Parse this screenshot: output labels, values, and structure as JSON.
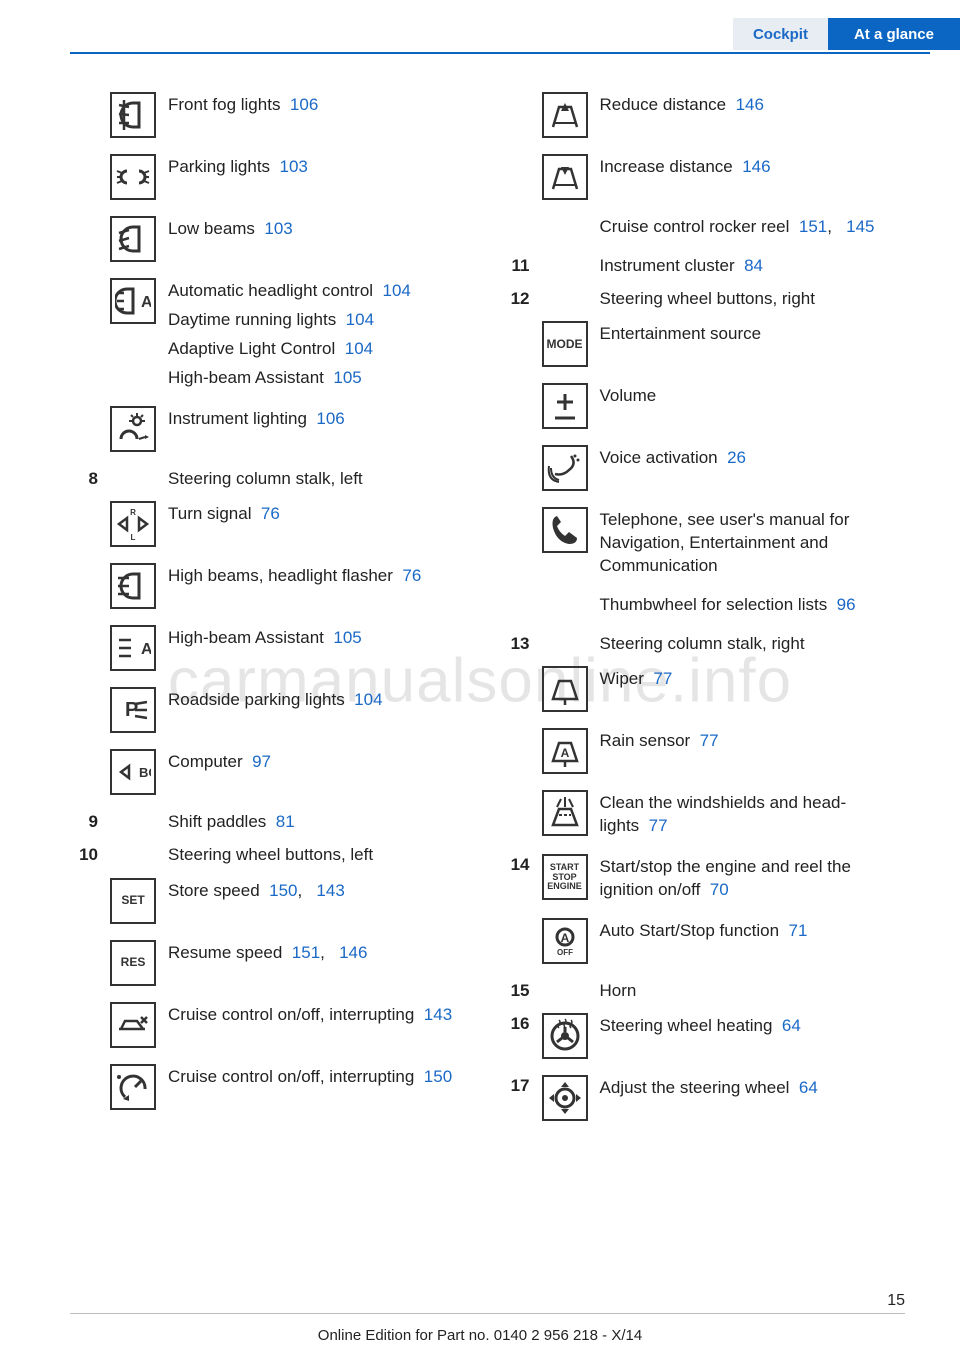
{
  "colors": {
    "link": "#1b69c6",
    "text": "#222222",
    "header_light_bg": "#e8edf4",
    "header_dark_bg": "#0a66c2",
    "header_rule": "#0a66c2",
    "watermark": "rgba(0,0,0,0.10)"
  },
  "typography": {
    "body_fontsize_pt": 13,
    "number_bold": true,
    "font_family": "Arial"
  },
  "header": {
    "tab_left": "Cockpit",
    "tab_right": "At a glance"
  },
  "watermark_text": "carmanualsonline.info",
  "page_number": "15",
  "footer_line": "Online Edition for Part no. 0140 2 956 218 - X/14",
  "left_column": [
    {
      "type": "icon-row",
      "num": "",
      "icon": "front-fog-icon",
      "icon_label": "",
      "text": [
        {
          "label": "Front fog lights",
          "refs": [
            "106"
          ]
        }
      ]
    },
    {
      "type": "icon-row",
      "num": "",
      "icon": "parking-lights-icon",
      "icon_label": "",
      "text": [
        {
          "label": "Parking lights",
          "refs": [
            "103"
          ]
        }
      ]
    },
    {
      "type": "icon-row",
      "num": "",
      "icon": "low-beams-icon",
      "icon_label": "",
      "text": [
        {
          "label": "Low beams",
          "refs": [
            "103"
          ]
        }
      ]
    },
    {
      "type": "icon-row",
      "num": "",
      "icon": "auto-headlight-icon",
      "icon_label": "",
      "text": [
        {
          "label": "Automatic headlight con­trol",
          "refs": [
            "104"
          ]
        },
        {
          "label": "Daytime running lights",
          "refs": [
            "104"
          ]
        },
        {
          "label": "Adaptive Light Control",
          "refs": [
            "104"
          ]
        },
        {
          "label": "High-beam Assistant",
          "refs": [
            "105"
          ]
        }
      ]
    },
    {
      "type": "icon-row",
      "num": "",
      "icon": "instrument-lighting-icon",
      "icon_label": "",
      "text": [
        {
          "label": "Instrument lighting",
          "refs": [
            "106"
          ]
        }
      ]
    },
    {
      "type": "heading",
      "num": "8",
      "text": "Steering column stalk, left"
    },
    {
      "type": "icon-row",
      "num": "",
      "icon": "turn-signal-icon",
      "icon_label": "",
      "text": [
        {
          "label": "Turn signal",
          "refs": [
            "76"
          ]
        }
      ]
    },
    {
      "type": "icon-row",
      "num": "",
      "icon": "high-beams-icon",
      "icon_label": "",
      "text": [
        {
          "label": "High beams, head­light flasher",
          "refs": [
            "76"
          ]
        }
      ]
    },
    {
      "type": "icon-row",
      "num": "",
      "icon": "high-beam-assist-icon",
      "icon_label": "",
      "text": [
        {
          "label": "High-beam Assistant",
          "refs": [
            "105"
          ]
        }
      ]
    },
    {
      "type": "icon-row",
      "num": "",
      "icon": "roadside-parking-icon",
      "icon_label": "",
      "text": [
        {
          "label": "Roadside parking lights",
          "refs": [
            "104"
          ]
        }
      ]
    },
    {
      "type": "icon-row",
      "num": "",
      "icon": "computer-icon",
      "icon_label": "BC",
      "text": [
        {
          "label": "Computer",
          "refs": [
            "97"
          ]
        }
      ]
    },
    {
      "type": "heading",
      "num": "9",
      "text_label": "Shift paddles",
      "refs": [
        "81"
      ]
    },
    {
      "type": "heading",
      "num": "10",
      "text": "Steering wheel buttons, left"
    },
    {
      "type": "icon-row",
      "num": "",
      "icon": "set-icon",
      "icon_label": "SET",
      "text": [
        {
          "label": "Store speed",
          "refs": [
            "150",
            "143"
          ]
        }
      ]
    },
    {
      "type": "icon-row",
      "num": "",
      "icon": "res-icon",
      "icon_label": "RES",
      "text": [
        {
          "label": "Resume speed",
          "refs": [
            "151",
            "146"
          ]
        }
      ]
    },
    {
      "type": "icon-row",
      "num": "",
      "icon": "cruise-car-icon",
      "icon_label": "",
      "text": [
        {
          "label": "Cruise control on/off, interrupt­ing",
          "refs": [
            "143"
          ]
        }
      ]
    },
    {
      "type": "icon-row",
      "num": "",
      "icon": "cruise-dial-icon",
      "icon_label": "",
      "text": [
        {
          "label": "Cruise control on/off, interrupt­ing",
          "refs": [
            "150"
          ]
        }
      ]
    }
  ],
  "right_column": [
    {
      "type": "icon-row",
      "num": "",
      "icon": "reduce-distance-icon",
      "icon_label": "",
      "text": [
        {
          "label": "Reduce distance",
          "refs": [
            "146"
          ]
        }
      ]
    },
    {
      "type": "icon-row",
      "num": "",
      "icon": "increase-distance-icon",
      "icon_label": "",
      "text": [
        {
          "label": "Increase distance",
          "refs": [
            "146"
          ]
        }
      ]
    },
    {
      "type": "text-row",
      "num": "",
      "text_label": "Cruise control rocker reel",
      "refs": [
        "151",
        "145"
      ]
    },
    {
      "type": "heading",
      "num": "11",
      "text_label": "Instrument cluster",
      "refs": [
        "84"
      ]
    },
    {
      "type": "heading",
      "num": "12",
      "text": "Steering wheel buttons, right"
    },
    {
      "type": "icon-row",
      "num": "",
      "icon": "mode-icon",
      "icon_label": "MODE",
      "text": [
        {
          "label": "Entertainment source",
          "refs": []
        }
      ]
    },
    {
      "type": "icon-row",
      "num": "",
      "icon": "volume-icon",
      "icon_label": "",
      "text": [
        {
          "label": "Volume",
          "refs": []
        }
      ]
    },
    {
      "type": "icon-row",
      "num": "",
      "icon": "voice-icon",
      "icon_label": "",
      "text": [
        {
          "label": "Voice activation",
          "refs": [
            "26"
          ]
        }
      ]
    },
    {
      "type": "icon-row",
      "num": "",
      "icon": "telephone-icon",
      "icon_label": "",
      "text": [
        {
          "label": "Telephone, see user's manual for Navigation, Entertainment and Communication",
          "refs": []
        }
      ]
    },
    {
      "type": "text-row",
      "num": "",
      "text_label": "Thumbwheel for selection lists",
      "refs": [
        "96"
      ]
    },
    {
      "type": "heading",
      "num": "13",
      "text": "Steering column stalk, right"
    },
    {
      "type": "icon-row",
      "num": "",
      "icon": "wiper-icon",
      "icon_label": "",
      "text": [
        {
          "label": "Wiper",
          "refs": [
            "77"
          ]
        }
      ]
    },
    {
      "type": "icon-row",
      "num": "",
      "icon": "rain-sensor-icon",
      "icon_label": "",
      "text": [
        {
          "label": "Rain sensor",
          "refs": [
            "77"
          ]
        }
      ]
    },
    {
      "type": "icon-row",
      "num": "",
      "icon": "washer-icon",
      "icon_label": "",
      "text": [
        {
          "label": "Clean the windshields and head­lights",
          "refs": [
            "77"
          ]
        }
      ]
    },
    {
      "type": "icon-row",
      "num": "14",
      "icon": "start-stop-icon",
      "icon_label": "START STOP ENGINE",
      "text": [
        {
          "label": "Start/stop the engine and reel the ignition on/off",
          "refs": [
            "70"
          ]
        }
      ]
    },
    {
      "type": "icon-row",
      "num": "",
      "icon": "auto-start-stop-icon",
      "icon_label": "",
      "text": [
        {
          "label": "Auto Start/Stop function",
          "refs": [
            "71"
          ]
        }
      ]
    },
    {
      "type": "heading",
      "num": "15",
      "text": "Horn"
    },
    {
      "type": "icon-row",
      "num": "16",
      "icon": "steering-heat-icon",
      "icon_label": "",
      "text": [
        {
          "label": "Steering wheel heating",
          "refs": [
            "64"
          ]
        }
      ]
    },
    {
      "type": "icon-row",
      "num": "17",
      "icon": "adjust-steering-icon",
      "icon_label": "",
      "text": [
        {
          "label": "Adjust the steering wheel",
          "refs": [
            "64"
          ]
        }
      ]
    }
  ]
}
